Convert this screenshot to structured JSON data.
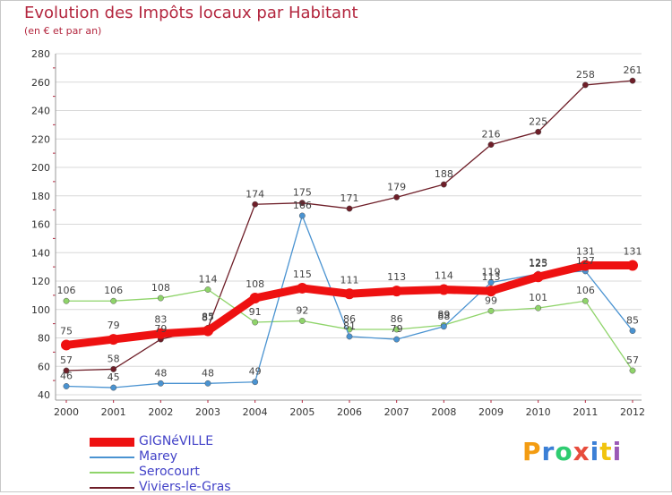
{
  "chart_data": {
    "type": "line",
    "title": "Evolution des Impôts locaux par Habitant",
    "subtitle": "(en € et par an)",
    "xlabel": "",
    "ylabel": "",
    "ylim": [
      40,
      280
    ],
    "yticks": [
      40,
      60,
      80,
      100,
      120,
      140,
      160,
      180,
      200,
      220,
      240,
      260,
      280
    ],
    "x": [
      "2000",
      "2001",
      "2002",
      "2003",
      "2004",
      "2005",
      "2006",
      "2007",
      "2008",
      "2009",
      "2010",
      "2011",
      "2012"
    ],
    "grid": "horizontal",
    "legend_position": "bottom-left",
    "series": [
      {
        "name": "Viviers-le-Gras",
        "color": "#6e1e28",
        "values": [
          57,
          58,
          79,
          87,
          174,
          175,
          171,
          179,
          188,
          216,
          225,
          258,
          261
        ]
      },
      {
        "name": "Serocourt",
        "color": "#8fd46a",
        "values": [
          106,
          106,
          108,
          114,
          91,
          92,
          86,
          86,
          89,
          99,
          101,
          106,
          57
        ]
      },
      {
        "name": "Marey",
        "color": "#4a93d1",
        "values": [
          46,
          45,
          48,
          48,
          49,
          166,
          81,
          79,
          88,
          119,
          125,
          127,
          85
        ]
      },
      {
        "name": "GIGNéVILLE",
        "color": "#ee1111",
        "values": [
          75,
          79,
          83,
          85,
          108,
          115,
          111,
          113,
          114,
          113,
          123,
          131,
          131
        ]
      }
    ]
  },
  "logo": {
    "text": "Proxiti",
    "letters": [
      "P",
      "r",
      "o",
      "x",
      "i",
      "t",
      "i"
    ],
    "colors": [
      "#f39c12",
      "#3b7fd6",
      "#2ecc71",
      "#e74c3c",
      "#3b7fd6",
      "#f1c40f",
      "#9b59b6"
    ]
  }
}
